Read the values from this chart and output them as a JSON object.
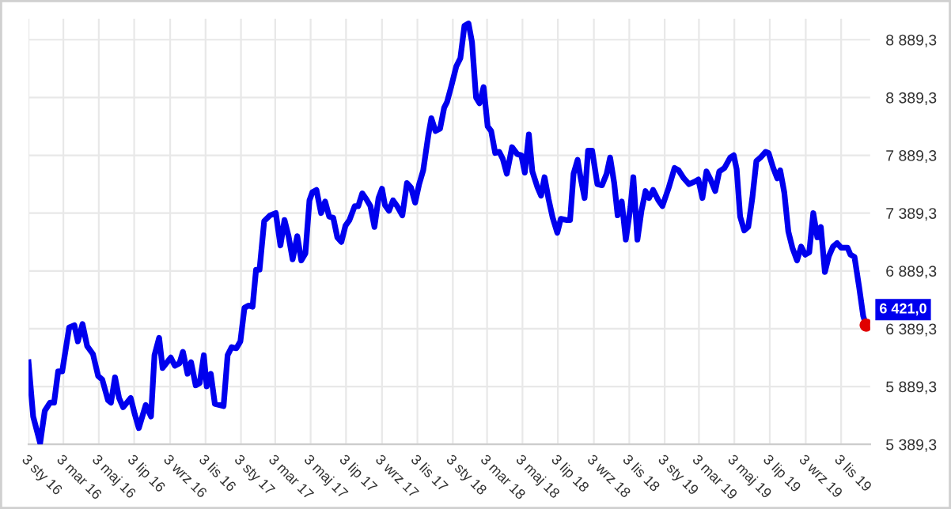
{
  "chart_data": {
    "type": "line",
    "x": [
      "2016-01-03",
      "2016-01-11",
      "2016-01-23",
      "2016-01-31",
      "2016-02-09",
      "2016-02-16",
      "2016-02-23",
      "2016-03-01",
      "2016-03-13",
      "2016-03-22",
      "2016-03-28",
      "2016-04-05",
      "2016-04-13",
      "2016-04-23",
      "2016-05-02",
      "2016-05-09",
      "2016-05-19",
      "2016-05-24",
      "2016-05-31",
      "2016-06-07",
      "2016-06-14",
      "2016-06-27",
      "2016-07-04",
      "2016-07-11",
      "2016-07-23",
      "2016-08-01",
      "2016-08-07",
      "2016-08-15",
      "2016-08-21",
      "2016-09-04",
      "2016-09-11",
      "2016-09-19",
      "2016-09-25",
      "2016-10-03",
      "2016-10-09",
      "2016-10-17",
      "2016-10-24",
      "2016-10-31",
      "2016-11-05",
      "2016-11-12",
      "2016-11-19",
      "2016-12-04",
      "2016-12-11",
      "2016-12-18",
      "2016-12-26",
      "2017-01-02",
      "2017-01-09",
      "2017-01-16",
      "2017-01-23",
      "2017-01-29",
      "2017-02-04",
      "2017-02-12",
      "2017-02-22",
      "2017-03-04",
      "2017-03-12",
      "2017-03-19",
      "2017-03-26",
      "2017-04-02",
      "2017-04-10",
      "2017-04-17",
      "2017-04-24",
      "2017-05-01",
      "2017-05-06",
      "2017-05-13",
      "2017-05-21",
      "2017-05-28",
      "2017-06-04",
      "2017-06-11",
      "2017-06-18",
      "2017-06-25",
      "2017-07-02",
      "2017-07-09",
      "2017-07-18",
      "2017-07-24",
      "2017-07-31",
      "2017-08-07",
      "2017-08-14",
      "2017-08-21",
      "2017-08-28",
      "2017-09-03",
      "2017-09-08",
      "2017-09-15",
      "2017-09-22",
      "2017-09-29",
      "2017-10-08",
      "2017-10-16",
      "2017-10-23",
      "2017-10-30",
      "2017-11-06",
      "2017-11-13",
      "2017-11-22",
      "2017-11-27",
      "2017-12-04",
      "2017-12-12",
      "2017-12-19",
      "2017-12-24",
      "2017-12-31",
      "2018-01-09",
      "2018-01-16",
      "2018-01-23",
      "2018-01-30",
      "2018-02-05",
      "2018-02-12",
      "2018-02-18",
      "2018-02-25",
      "2018-03-04",
      "2018-03-10",
      "2018-03-17",
      "2018-03-24",
      "2018-03-30",
      "2018-04-06",
      "2018-04-15",
      "2018-04-24",
      "2018-05-01",
      "2018-05-07",
      "2018-05-14",
      "2018-05-20",
      "2018-05-29",
      "2018-06-04",
      "2018-06-10",
      "2018-06-17",
      "2018-06-24",
      "2018-07-02",
      "2018-07-08",
      "2018-07-17",
      "2018-07-24",
      "2018-07-30",
      "2018-08-06",
      "2018-08-11",
      "2018-08-18",
      "2018-08-24",
      "2018-08-31",
      "2018-09-09",
      "2018-09-17",
      "2018-09-25",
      "2018-10-01",
      "2018-10-08",
      "2018-10-14",
      "2018-10-21",
      "2018-10-28",
      "2018-11-05",
      "2018-11-10",
      "2018-11-17",
      "2018-11-24",
      "2018-12-01",
      "2018-12-07",
      "2018-12-14",
      "2018-12-23",
      "2018-12-30",
      "2019-01-10",
      "2019-01-20",
      "2019-01-27",
      "2019-02-05",
      "2019-02-14",
      "2019-02-23",
      "2019-03-02",
      "2019-03-09",
      "2019-03-16",
      "2019-03-23",
      "2019-03-31",
      "2019-04-07",
      "2019-04-16",
      "2019-04-26",
      "2019-05-02",
      "2019-05-07",
      "2019-05-13",
      "2019-05-20",
      "2019-05-27",
      "2019-06-03",
      "2019-06-10",
      "2019-06-17",
      "2019-06-26",
      "2019-07-01",
      "2019-07-09",
      "2019-07-16",
      "2019-07-21",
      "2019-07-28",
      "2019-08-04",
      "2019-08-11",
      "2019-08-19",
      "2019-08-26",
      "2019-09-02",
      "2019-09-09",
      "2019-09-16",
      "2019-09-23",
      "2019-09-29",
      "2019-10-06",
      "2019-10-13",
      "2019-10-20",
      "2019-10-27",
      "2019-11-03",
      "2019-11-14",
      "2019-11-19",
      "2019-11-26",
      "2019-12-04",
      "2019-12-11",
      "2019-12-16"
    ],
    "series": [
      {
        "color": "#0000ee",
        "values": [
          6100,
          5630,
          5400,
          5680,
          5750,
          5750,
          6020,
          6020,
          6400,
          6420,
          6280,
          6430,
          6240,
          6170,
          5980,
          5950,
          5770,
          5750,
          5970,
          5790,
          5710,
          5790,
          5650,
          5530,
          5730,
          5630,
          6160,
          6310,
          6050,
          6140,
          6070,
          6090,
          6190,
          6000,
          6100,
          5900,
          5920,
          6160,
          5890,
          6000,
          5740,
          5720,
          6160,
          6230,
          6220,
          6280,
          6570,
          6590,
          6580,
          6900,
          6900,
          7320,
          7370,
          7390,
          7110,
          7330,
          7190,
          6990,
          7190,
          6980,
          7040,
          7500,
          7570,
          7590,
          7390,
          7490,
          7360,
          7350,
          7180,
          7140,
          7280,
          7330,
          7450,
          7450,
          7560,
          7510,
          7450,
          7270,
          7520,
          7600,
          7460,
          7410,
          7500,
          7450,
          7370,
          7650,
          7610,
          7480,
          7640,
          7760,
          8070,
          8210,
          8100,
          8120,
          8300,
          8350,
          8480,
          8660,
          8730,
          9010,
          9030,
          8870,
          8390,
          8340,
          8480,
          8140,
          8100,
          7910,
          7920,
          7860,
          7730,
          7960,
          7900,
          7890,
          7740,
          8070,
          7750,
          7610,
          7540,
          7700,
          7510,
          7350,
          7220,
          7340,
          7330,
          7330,
          7730,
          7850,
          7700,
          7520,
          7930,
          7930,
          7640,
          7630,
          7730,
          7870,
          7650,
          7370,
          7490,
          7160,
          7440,
          7700,
          7160,
          7410,
          7580,
          7520,
          7590,
          7500,
          7450,
          7610,
          7780,
          7760,
          7690,
          7640,
          7660,
          7680,
          7520,
          7750,
          7680,
          7580,
          7750,
          7780,
          7870,
          7890,
          7770,
          7360,
          7240,
          7270,
          7520,
          7840,
          7870,
          7920,
          7910,
          7780,
          7690,
          7760,
          7570,
          7230,
          7090,
          6980,
          7100,
          7030,
          7050,
          7390,
          7180,
          7270,
          6880,
          7020,
          7100,
          7130,
          7090,
          7090,
          7030,
          7010,
          6750,
          6500,
          6421
        ]
      }
    ],
    "xlim": [
      "2016-01-03",
      "2019-12-23"
    ],
    "xticks": [
      {
        "value": "2016-01-03",
        "label": "3 sty 16"
      },
      {
        "value": "2016-03-03",
        "label": "3 mar 16"
      },
      {
        "value": "2016-05-03",
        "label": "3 maj 16"
      },
      {
        "value": "2016-07-03",
        "label": "3 lip 16"
      },
      {
        "value": "2016-09-03",
        "label": "3 wrz 16"
      },
      {
        "value": "2016-11-03",
        "label": "3 lis 16"
      },
      {
        "value": "2017-01-03",
        "label": "3 sty 17"
      },
      {
        "value": "2017-03-03",
        "label": "3 mar 17"
      },
      {
        "value": "2017-05-03",
        "label": "3 maj 17"
      },
      {
        "value": "2017-07-03",
        "label": "3 lip 17"
      },
      {
        "value": "2017-09-03",
        "label": "3 wrz 17"
      },
      {
        "value": "2017-11-03",
        "label": "3 lis 17"
      },
      {
        "value": "2018-01-03",
        "label": "3 sty 18"
      },
      {
        "value": "2018-03-03",
        "label": "3 mar 18"
      },
      {
        "value": "2018-05-03",
        "label": "3 maj 18"
      },
      {
        "value": "2018-07-03",
        "label": "3 lip 18"
      },
      {
        "value": "2018-09-03",
        "label": "3 wrz 18"
      },
      {
        "value": "2018-11-03",
        "label": "3 lis 18"
      },
      {
        "value": "2019-01-03",
        "label": "3 sty 19"
      },
      {
        "value": "2019-03-03",
        "label": "3 mar 19"
      },
      {
        "value": "2019-05-03",
        "label": "3 maj 19"
      },
      {
        "value": "2019-07-03",
        "label": "3 lip 19"
      },
      {
        "value": "2019-09-03",
        "label": "3 wrz 19"
      },
      {
        "value": "2019-11-03",
        "label": "3 lis 19"
      }
    ],
    "ylim": [
      5389.3,
      9070
    ],
    "yticks": [
      {
        "value": 5389.3,
        "label": "5 389,3"
      },
      {
        "value": 5889.3,
        "label": "5 889,3"
      },
      {
        "value": 6389.3,
        "label": "6 389,3"
      },
      {
        "value": 6889.3,
        "label": "6 889,3"
      },
      {
        "value": 7389.3,
        "label": "7 389,3"
      },
      {
        "value": 7889.3,
        "label": "7 889,3"
      },
      {
        "value": 8389.3,
        "label": "8 389,3"
      },
      {
        "value": 8889.3,
        "label": "8 889,3"
      }
    ],
    "annotations": [
      {
        "text": "6 421,0",
        "x": "2019-12-16",
        "y": 6421
      }
    ],
    "grid": true,
    "marker": "none",
    "line_style": "solid"
  }
}
